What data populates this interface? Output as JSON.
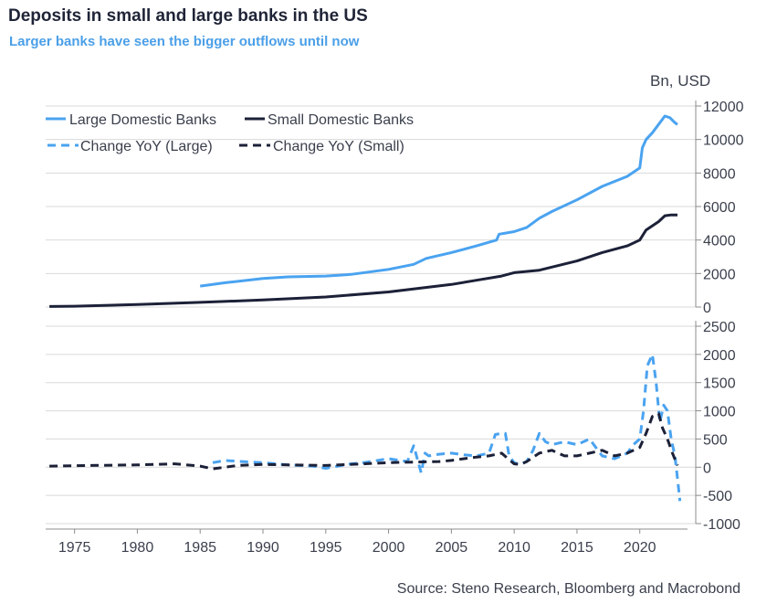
{
  "title": "Deposits in small and large banks in the US",
  "subtitle": "Larger banks have seen the bigger outflows until now",
  "source": "Source: Steno Research, Bloomberg and Macrobond",
  "colors": {
    "large": "#4aa3f0",
    "small": "#1c2138",
    "grid": "#d9d9d9",
    "axis": "#8c8c8c"
  },
  "chart_data": [
    {
      "type": "line",
      "unit_label": "Bn, USD",
      "xlim": [
        1972.7,
        2023.8
      ],
      "ylim": [
        0,
        12000
      ],
      "yticks": [
        0,
        2000,
        4000,
        6000,
        8000,
        10000,
        12000
      ],
      "ytick_labels": [
        "0",
        "2000",
        "4000",
        "6000",
        "8000",
        "10000",
        "12000"
      ],
      "legend_placement": "top-left",
      "grid": true,
      "series": [
        {
          "name": "Large Domestic Banks",
          "style": "solid",
          "x": [
            1985.0,
            1987.0,
            1990.0,
            1992.0,
            1995.0,
            1997.0,
            2000.0,
            2002.0,
            2003.0,
            2005.0,
            2007.0,
            2008.6,
            2008.8,
            2010.0,
            2011.0,
            2012.0,
            2013.0,
            2015.0,
            2017.0,
            2019.0,
            2020.0,
            2020.2,
            2020.5,
            2021.0,
            2021.6,
            2022.0,
            2022.4,
            2022.8,
            2023.0
          ],
          "y": [
            1250,
            1450,
            1700,
            1800,
            1850,
            1950,
            2250,
            2550,
            2900,
            3250,
            3650,
            4000,
            4350,
            4500,
            4750,
            5300,
            5700,
            6400,
            7200,
            7800,
            8300,
            9500,
            10000,
            10400,
            11000,
            11400,
            11300,
            11000,
            10900
          ]
        },
        {
          "name": "Small Domestic Banks",
          "style": "solid",
          "x": [
            1973.0,
            1975.0,
            1980.0,
            1985.0,
            1990.0,
            1995.0,
            2000.0,
            2005.0,
            2007.0,
            2009.0,
            2010.0,
            2012.0,
            2015.0,
            2017.0,
            2019.0,
            2020.0,
            2020.5,
            2021.5,
            2022.0,
            2022.5,
            2023.0
          ],
          "y": [
            30,
            50,
            150,
            280,
            420,
            600,
            900,
            1350,
            1600,
            1850,
            2050,
            2200,
            2750,
            3250,
            3650,
            4000,
            4600,
            5100,
            5450,
            5500,
            5500
          ]
        }
      ]
    },
    {
      "type": "line",
      "xlim": [
        1972.7,
        2023.8
      ],
      "ylim": [
        -1000,
        2500
      ],
      "yticks": [
        -1000,
        -500,
        0,
        500,
        1000,
        1500,
        2000,
        2500
      ],
      "ytick_labels": [
        "-1000",
        "-500",
        "0",
        "500",
        "1000",
        "1500",
        "2000",
        "2500"
      ],
      "xticks": [
        1975,
        1980,
        1985,
        1990,
        1995,
        2000,
        2005,
        2010,
        2015,
        2020
      ],
      "xtick_labels": [
        "1975",
        "1980",
        "1985",
        "1990",
        "1995",
        "2000",
        "2005",
        "2010",
        "2015",
        "2020"
      ],
      "grid": true,
      "series": [
        {
          "name": "Change YoY (Large)",
          "style": "dashed",
          "x": [
            1986.0,
            1987.0,
            1989.0,
            1990.0,
            1992.0,
            1994.0,
            1995.0,
            1997.0,
            1998.0,
            2000.0,
            2001.5,
            2002.0,
            2002.6,
            2002.9,
            2003.2,
            2004.0,
            2005.0,
            2006.0,
            2007.0,
            2008.0,
            2008.5,
            2009.0,
            2009.3,
            2009.6,
            2010.0,
            2010.5,
            2011.0,
            2011.5,
            2012.0,
            2012.5,
            2013.0,
            2014.0,
            2015.0,
            2016.0,
            2016.5,
            2017.0,
            2018.0,
            2019.0,
            2019.5,
            2020.0,
            2020.3,
            2020.6,
            2021.0,
            2021.3,
            2021.6,
            2021.9,
            2022.2,
            2022.5,
            2022.8,
            2023.0,
            2023.2
          ],
          "y": [
            80,
            120,
            90,
            80,
            40,
            20,
            -20,
            60,
            80,
            150,
            100,
            380,
            -100,
            250,
            200,
            230,
            250,
            220,
            200,
            250,
            580,
            600,
            600,
            200,
            80,
            50,
            100,
            300,
            600,
            450,
            400,
            450,
            400,
            500,
            350,
            200,
            150,
            250,
            400,
            500,
            1000,
            1800,
            2000,
            1500,
            800,
            1100,
            1000,
            500,
            200,
            -200,
            -600
          ]
        },
        {
          "name": "Change YoY (Small)",
          "style": "dashed",
          "x": [
            1973.0,
            1976.0,
            1980.0,
            1983.0,
            1985.0,
            1986.0,
            1988.0,
            1990.0,
            1992.0,
            1995.0,
            1998.0,
            2000.0,
            2002.0,
            2004.0,
            2005.0,
            2006.0,
            2007.0,
            2008.0,
            2009.0,
            2009.5,
            2010.0,
            2010.5,
            2011.0,
            2012.0,
            2013.0,
            2014.0,
            2015.0,
            2016.0,
            2017.0,
            2018.0,
            2019.0,
            2020.0,
            2020.5,
            2021.0,
            2021.5,
            2021.8,
            2022.2,
            2022.6,
            2023.0
          ],
          "y": [
            20,
            30,
            40,
            60,
            20,
            -30,
            30,
            50,
            40,
            30,
            60,
            80,
            90,
            100,
            120,
            150,
            180,
            200,
            250,
            150,
            60,
            50,
            100,
            250,
            300,
            200,
            200,
            250,
            300,
            200,
            250,
            350,
            600,
            900,
            950,
            700,
            500,
            250,
            30
          ]
        }
      ]
    }
  ]
}
